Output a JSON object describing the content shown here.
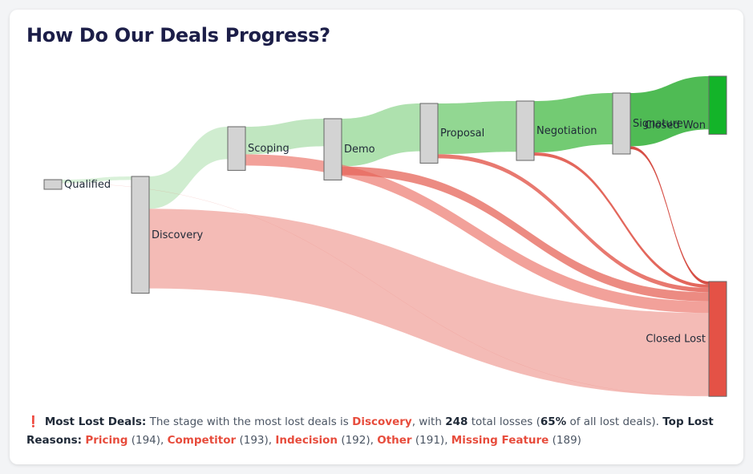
{
  "title": "How Do Our Deals Progress?",
  "colors": {
    "won": "#13b429",
    "lost": "#e45246",
    "node": "#d3d3d3",
    "node_border": "#666666"
  },
  "chart_data": {
    "type": "sankey",
    "nodes": [
      {
        "id": "Qualified",
        "label": "Qualified"
      },
      {
        "id": "Discovery",
        "label": "Discovery"
      },
      {
        "id": "Scoping",
        "label": "Scoping"
      },
      {
        "id": "Demo",
        "label": "Demo"
      },
      {
        "id": "Proposal",
        "label": "Proposal"
      },
      {
        "id": "Negotiation",
        "label": "Negotiation"
      },
      {
        "id": "Signature",
        "label": "Signature"
      },
      {
        "id": "ClosedWon",
        "label": "Closed Won"
      },
      {
        "id": "ClosedLost",
        "label": "Closed Lost"
      }
    ],
    "links": [
      {
        "source": "Qualified",
        "target": "Discovery",
        "value": 12
      },
      {
        "source": "Qualified",
        "target": "ClosedLost",
        "value": 1
      },
      {
        "source": "Discovery",
        "target": "Scoping",
        "value": 101
      },
      {
        "source": "Discovery",
        "target": "ClosedLost",
        "value": 248
      },
      {
        "source": "Scoping",
        "target": "Demo",
        "value": 86
      },
      {
        "source": "Scoping",
        "target": "ClosedLost",
        "value": 35
      },
      {
        "source": "Demo",
        "target": "Proposal",
        "value": 149
      },
      {
        "source": "Demo",
        "target": "ClosedLost",
        "value": 27
      },
      {
        "source": "Proposal",
        "target": "Negotiation",
        "value": 158
      },
      {
        "source": "Proposal",
        "target": "ClosedLost",
        "value": 13
      },
      {
        "source": "Negotiation",
        "target": "Signature",
        "value": 160
      },
      {
        "source": "Negotiation",
        "target": "ClosedLost",
        "value": 10
      },
      {
        "source": "Signature",
        "target": "ClosedWon",
        "value": 166
      },
      {
        "source": "Signature",
        "target": "ClosedLost",
        "value": 9
      }
    ]
  },
  "summary": {
    "icon": "❗",
    "lead_label": "Most Lost Deals:",
    "text1": "The stage with the most lost deals is",
    "stage": "Discovery",
    "text2": ", with",
    "losses": "248",
    "text3": "total losses (",
    "percent": "65%",
    "text4": "of all lost deals).",
    "reasons_label": "Top Lost Reasons:",
    "reasons": [
      {
        "name": "Pricing",
        "count": "(194)"
      },
      {
        "name": "Competitor",
        "count": "(193)"
      },
      {
        "name": "Indecision",
        "count": "(192)"
      },
      {
        "name": "Other",
        "count": "(191)"
      },
      {
        "name": "Missing Feature",
        "count": "(189)"
      }
    ]
  }
}
